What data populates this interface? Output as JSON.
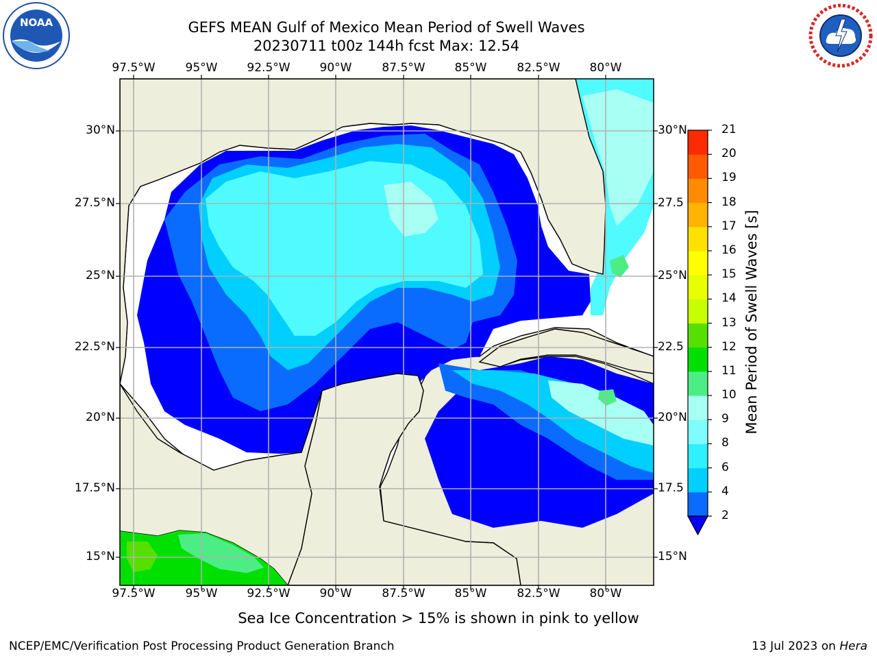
{
  "title": {
    "line1": "GEFS MEAN Gulf of Mexico Mean Period of Swell Waves",
    "line2": "20230711 t00z 144h fcst   Max: 12.54"
  },
  "axes": {
    "lon_labels": [
      "97.5°W",
      "95°W",
      "92.5°W",
      "90°W",
      "87.5°W",
      "85°W",
      "82.5°W",
      "80°W"
    ],
    "lat_labels_left": [
      "30°N",
      "27.5°N",
      "25°N",
      "22.5°N",
      "20°N",
      "17.5°N",
      "15°N"
    ],
    "lat_labels_right": [
      "30°N",
      "27.5",
      "25°N",
      "22.5",
      "20°N",
      "17.5",
      "15°N"
    ]
  },
  "colorbar": {
    "label": "Mean Period of Swell Waves [s]",
    "ticks": [
      "2",
      "4",
      "6",
      "8",
      "9",
      "10",
      "11",
      "12",
      "13",
      "14",
      "15",
      "16",
      "17",
      "18",
      "19",
      "20",
      "21"
    ],
    "colors": [
      "#0a6cff",
      "#00cfff",
      "#2ff0ff",
      "#7ffcff",
      "#a8fff4",
      "#4ded86",
      "#00e000",
      "#55e000",
      "#c8ff00",
      "#e7ff00",
      "#ffff00",
      "#ffe100",
      "#ffb400",
      "#ff8c00",
      "#ff5a00",
      "#ff2a00",
      "#ff0000"
    ],
    "extend_color": "#0000ff"
  },
  "colors": {
    "land": "#eeeedd",
    "grid": "#b0b0b0",
    "nodata": "#ffffff"
  },
  "logos": {
    "left": "NOAA",
    "right": "NATIONAL WEATHER SERVICE"
  },
  "note": "Sea Ice Concentration > 15% is shown in pink to yellow",
  "footer": {
    "left": "NCEP/EMC/Verification Post Processing Product Generation Branch",
    "right_prefix": "13 Jul 2023 on ",
    "right_machine": "Hera"
  }
}
